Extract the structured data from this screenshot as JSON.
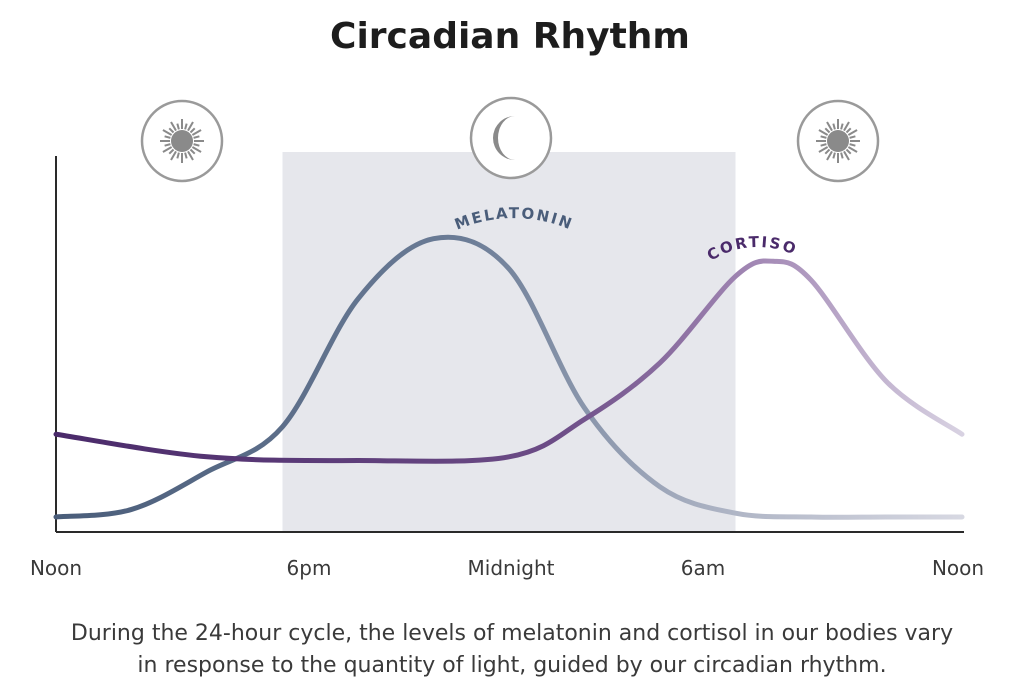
{
  "chart_data": {
    "type": "line",
    "title": "Circadian Rhythm",
    "x_ticks": [
      "Noon",
      "6pm",
      "Midnight",
      "6am",
      "Noon"
    ],
    "x_range_hours": [
      0,
      24
    ],
    "y_range": [
      0,
      100
    ],
    "night_band_hours": [
      6,
      18
    ],
    "series": [
      {
        "name": "MELATONIN",
        "color_start": "#4a5d7a",
        "color_end": "#d7d8e2",
        "x": [
          0,
          2,
          4,
          6,
          8,
          10,
          12,
          14,
          16,
          18,
          20,
          22,
          24
        ],
        "y": [
          4,
          6,
          16,
          28,
          62,
          78,
          70,
          33,
          12,
          5,
          4,
          4,
          4
        ]
      },
      {
        "name": "CORTISOL",
        "color_start": "#4a2a6a",
        "color_end": "#d8d2e2",
        "x": [
          0,
          4,
          8,
          12,
          14,
          16,
          18,
          19,
          20,
          22,
          24
        ],
        "y": [
          26,
          20,
          19,
          20,
          30,
          45,
          68,
          72,
          67,
          40,
          26
        ]
      }
    ],
    "icons": [
      "sun-icon",
      "moon-icon",
      "sun-icon"
    ],
    "grid": false,
    "legend": "none"
  },
  "caption": {
    "line1": "During the 24-hour cycle, the levels of melatonin and cortisol in our bodies vary",
    "line2": "in response to the quantity of light, guided by our circadian rhythm."
  }
}
